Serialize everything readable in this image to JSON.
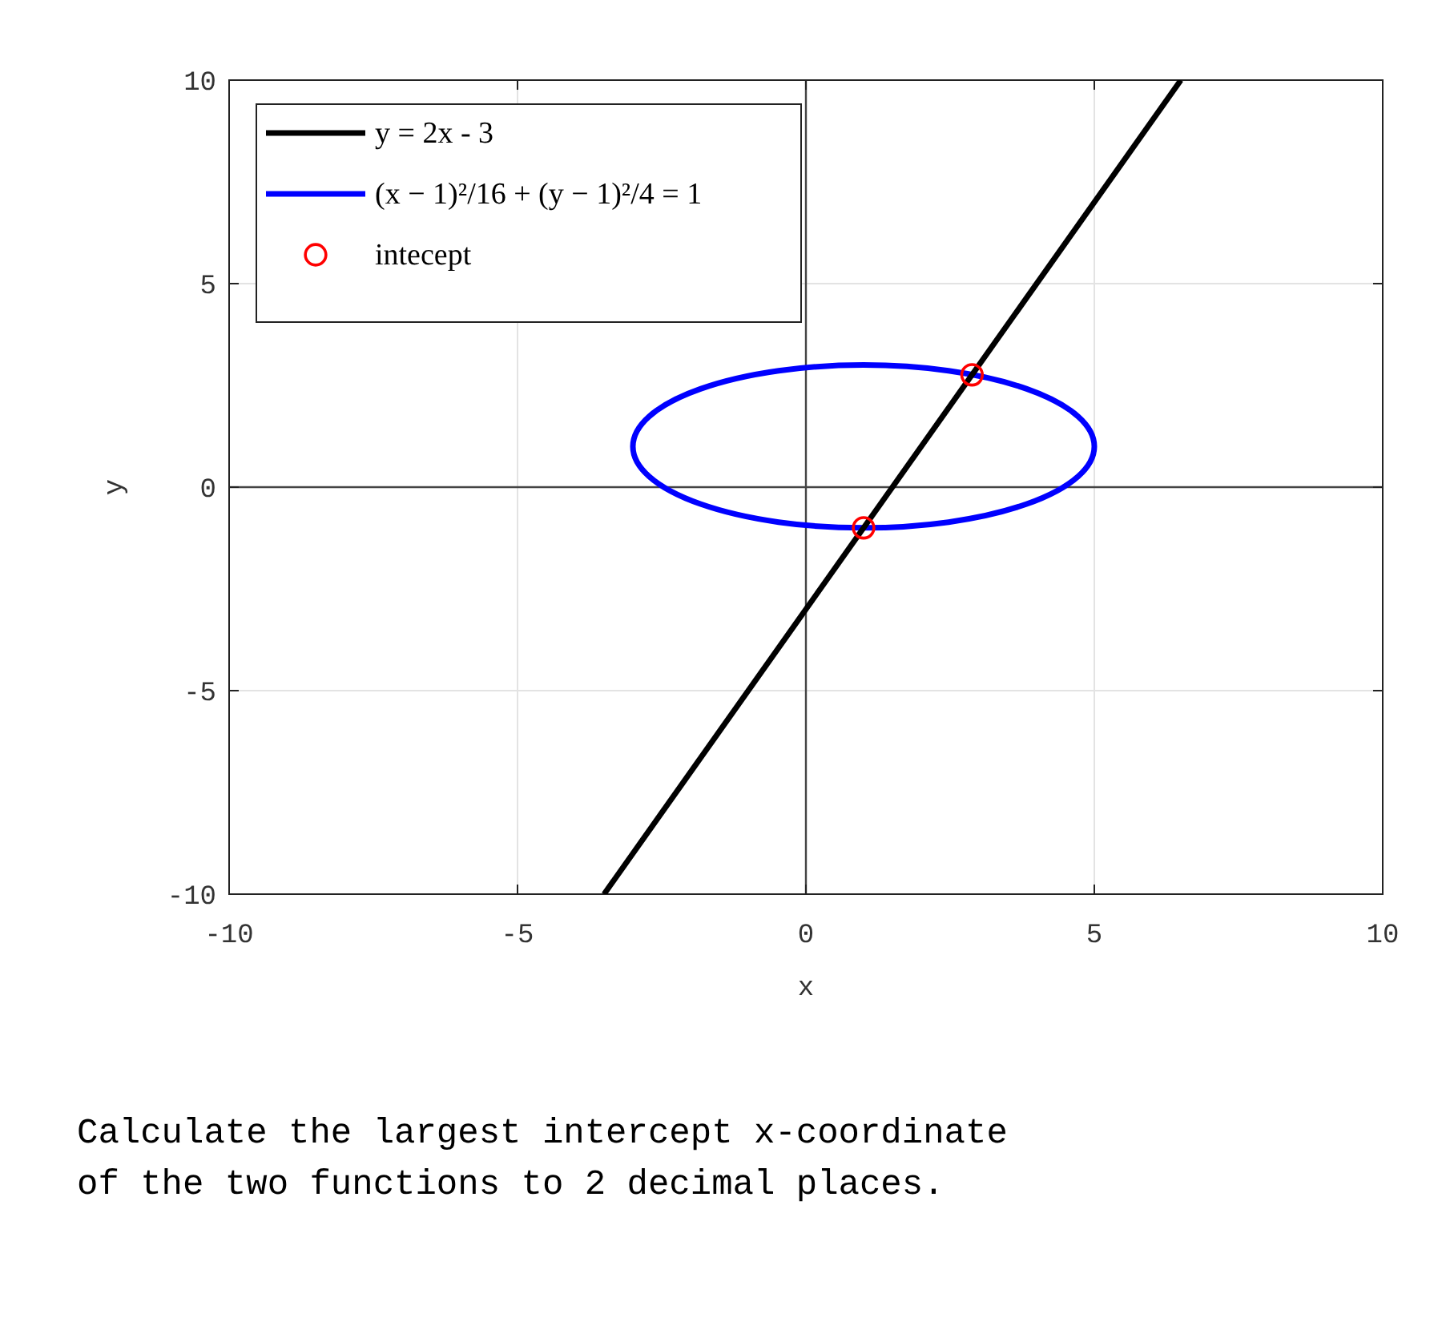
{
  "chart_data": {
    "type": "line",
    "xlabel": "x",
    "ylabel": "y",
    "xlim": [
      -10,
      10
    ],
    "ylim": [
      -10,
      10
    ],
    "xticks": [
      -10,
      -5,
      0,
      5,
      10
    ],
    "yticks": [
      -10,
      -5,
      0,
      5,
      10
    ],
    "grid": true,
    "legend": "top left",
    "line_style": "solid",
    "series": [
      {
        "name": "y = 2x - 3",
        "color": "#000000",
        "x": [
          -3.5,
          6.5
        ],
        "values": [
          -10,
          10
        ]
      },
      {
        "name": "(x − 1)²/16 + (y − 1)²/4 = 1",
        "type": "line",
        "color": "#0000ff"
      },
      {
        "name": "intecept",
        "type": "scatter",
        "marker": "circle",
        "color": "#ff0000",
        "x": [
          1,
          2.88
        ],
        "values": [
          -1,
          2.76
        ]
      }
    ],
    "annotations": [
      "Calculate the largest intercept x-coordinate of the two functions to 2 decimal places."
    ]
  }
}
